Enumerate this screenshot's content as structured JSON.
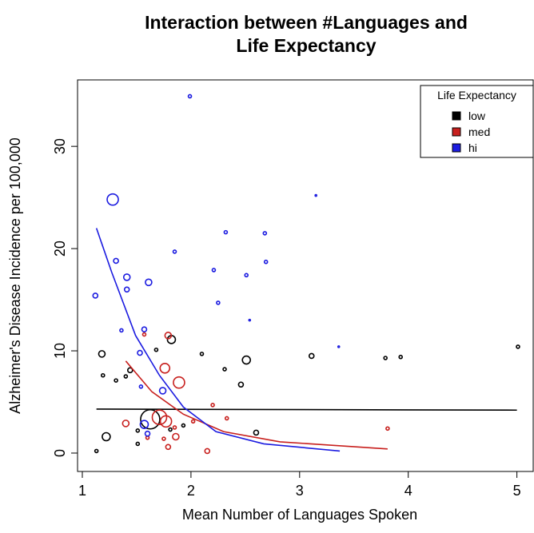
{
  "chart_data": {
    "type": "scatter",
    "title": [
      "Interaction between #Languages and",
      "Life Expectancy"
    ],
    "x_label": "Mean Number of Languages Spoken",
    "y_label": "Alzheimer's Disease Incidence per 100,000",
    "legend_title": "Life Expectancy",
    "legend": "topright",
    "xlim": [
      0.956,
      5.15
    ],
    "ylim": [
      -1.8,
      36.5
    ],
    "xticks": [
      1,
      2,
      3,
      4,
      5
    ],
    "yticks": [
      0,
      10,
      20,
      30
    ],
    "series": [
      {
        "name": "low",
        "color": "#000000",
        "x": [
          1.13,
          1.18,
          1.19,
          1.31,
          1.4,
          1.44,
          1.22,
          1.625,
          1.51,
          1.51,
          1.82,
          1.68,
          2.1,
          2.31,
          2.46,
          2.51,
          2.6,
          3.11,
          3.79,
          3.93,
          5.01,
          1.93,
          1.81
        ],
        "y": [
          0.2,
          9.7,
          7.6,
          7.1,
          7.5,
          8.1,
          1.6,
          3.3,
          0.9,
          2.2,
          11.1,
          10.1,
          9.7,
          8.2,
          6.7,
          9.1,
          2.0,
          9.5,
          9.3,
          9.4,
          10.4,
          2.7,
          2.3
        ],
        "sizes": [
          1,
          2,
          1,
          1,
          1,
          1.5,
          2.5,
          6,
          1,
          1,
          2.5,
          1,
          1,
          1,
          1.5,
          2.5,
          1.5,
          1.5,
          1,
          1,
          1,
          1,
          1
        ],
        "fit": {
          "x": [
            1.13,
            5.0
          ],
          "y": [
            4.3,
            4.2
          ]
        }
      },
      {
        "name": "med",
        "color": "#c8201e",
        "x": [
          1.4,
          1.57,
          1.79,
          1.76,
          1.89,
          1.71,
          1.77,
          1.86,
          1.79,
          1.75,
          2.15,
          2.02,
          2.2,
          2.33,
          3.81,
          1.6,
          1.85
        ],
        "y": [
          2.9,
          11.6,
          11.5,
          8.3,
          6.9,
          3.5,
          3.1,
          1.6,
          0.6,
          1.4,
          0.2,
          3.1,
          4.7,
          3.4,
          2.4,
          1.5,
          2.5
        ],
        "sizes": [
          2,
          1,
          2,
          3,
          3.5,
          4.5,
          3.5,
          2,
          1.5,
          1,
          1.5,
          1,
          1,
          1,
          1,
          1,
          1
        ],
        "fit": {
          "x": [
            1.4,
            1.64,
            1.93,
            2.3,
            2.82,
            3.81
          ],
          "y": [
            9.0,
            6.0,
            3.8,
            2.1,
            1.1,
            0.4
          ]
        }
      },
      {
        "name": "hi",
        "color": "#1c1ce0",
        "x": [
          1.28,
          1.12,
          1.31,
          1.41,
          1.41,
          1.61,
          1.99,
          1.85,
          2.21,
          2.32,
          2.68,
          2.69,
          2.51,
          2.25,
          3.15,
          2.54,
          1.36,
          1.57,
          1.53,
          3.36,
          1.74,
          1.57,
          1.6,
          1.54
        ],
        "y": [
          24.8,
          15.4,
          18.8,
          17.2,
          16.0,
          16.7,
          34.9,
          19.7,
          17.9,
          21.6,
          21.5,
          18.7,
          17.4,
          14.7,
          25.2,
          13.0,
          12.0,
          12.1,
          9.8,
          10.4,
          6.1,
          2.8,
          1.9,
          6.5
        ],
        "sizes": [
          3.5,
          1.5,
          1.5,
          2,
          1.5,
          2,
          1,
          1,
          1,
          1,
          1,
          1,
          1,
          1,
          0.5,
          0.5,
          1,
          1.5,
          1.5,
          0.5,
          2,
          2.5,
          1.5,
          1
        ],
        "fit": {
          "x": [
            1.13,
            1.27,
            1.49,
            1.71,
            1.93,
            2.23,
            2.67,
            3.37
          ],
          "y": [
            22.0,
            17.7,
            11.5,
            7.6,
            4.5,
            2.1,
            0.9,
            0.2
          ]
        }
      }
    ]
  }
}
